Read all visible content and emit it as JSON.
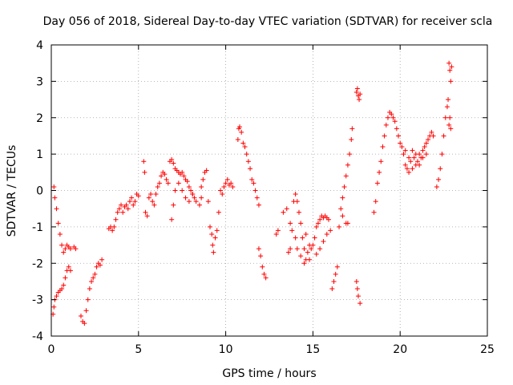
{
  "chart_data": {
    "type": "scatter",
    "title": "Day 056 of 2018, Sidereal Day-to-day VTEC variation (SDTVAR) for receiver scla",
    "xlabel": "GPS time / hours",
    "ylabel": "SDTVAR / TECUs",
    "xlim": [
      0,
      25
    ],
    "ylim": [
      -4,
      4
    ],
    "xticks": [
      0,
      5,
      10,
      15,
      20,
      25
    ],
    "xtick_labels": [
      "0",
      "5",
      "10",
      "15",
      "20",
      "25"
    ],
    "yticks": [
      -4,
      -3,
      -2,
      -1,
      0,
      1,
      2,
      3,
      4
    ],
    "ytick_labels": [
      "-4",
      "-3",
      "-2",
      "-1",
      "0",
      "1",
      "2",
      "3",
      "4"
    ],
    "grid": true,
    "marker": "+",
    "color": "#ff0000",
    "series": [
      {
        "name": "SDTVAR",
        "points": [
          [
            0.15,
            0.1
          ],
          [
            0.2,
            -0.2
          ],
          [
            0.3,
            -0.5
          ],
          [
            0.4,
            -0.9
          ],
          [
            0.5,
            -1.2
          ],
          [
            0.6,
            -1.5
          ],
          [
            0.7,
            -1.7
          ],
          [
            0.8,
            -1.6
          ],
          [
            0.9,
            -1.5
          ],
          [
            1.0,
            -1.55
          ],
          [
            1.1,
            -1.6
          ],
          [
            1.3,
            -1.55
          ],
          [
            1.4,
            -1.6
          ],
          [
            0.1,
            -3.4
          ],
          [
            0.15,
            -3.2
          ],
          [
            0.2,
            -3.0
          ],
          [
            0.3,
            -2.9
          ],
          [
            0.4,
            -2.8
          ],
          [
            0.5,
            -2.75
          ],
          [
            0.6,
            -2.7
          ],
          [
            0.7,
            -2.6
          ],
          [
            0.8,
            -2.4
          ],
          [
            0.9,
            -2.2
          ],
          [
            1.0,
            -2.1
          ],
          [
            1.1,
            -2.2
          ],
          [
            1.7,
            -3.45
          ],
          [
            1.8,
            -3.6
          ],
          [
            1.9,
            -3.65
          ],
          [
            2.0,
            -3.3
          ],
          [
            2.1,
            -3.0
          ],
          [
            2.2,
            -2.7
          ],
          [
            2.3,
            -2.5
          ],
          [
            2.4,
            -2.4
          ],
          [
            2.5,
            -2.3
          ],
          [
            2.6,
            -2.1
          ],
          [
            2.7,
            -2.0
          ],
          [
            2.8,
            -2.05
          ],
          [
            2.9,
            -1.9
          ],
          [
            3.3,
            -1.05
          ],
          [
            3.4,
            -1.0
          ],
          [
            3.5,
            -1.1
          ],
          [
            3.6,
            -1.0
          ],
          [
            3.7,
            -0.8
          ],
          [
            3.8,
            -0.6
          ],
          [
            3.9,
            -0.5
          ],
          [
            4.0,
            -0.4
          ],
          [
            4.1,
            -0.6
          ],
          [
            4.2,
            -0.45
          ],
          [
            4.3,
            -0.4
          ],
          [
            4.4,
            -0.5
          ],
          [
            4.5,
            -0.3
          ],
          [
            4.6,
            -0.2
          ],
          [
            4.7,
            -0.4
          ],
          [
            4.8,
            -0.3
          ],
          [
            4.9,
            -0.1
          ],
          [
            5.0,
            -0.15
          ],
          [
            5.3,
            0.8
          ],
          [
            5.35,
            0.5
          ],
          [
            5.4,
            -0.6
          ],
          [
            5.5,
            -0.7
          ],
          [
            5.6,
            -0.2
          ],
          [
            5.7,
            -0.1
          ],
          [
            5.8,
            -0.3
          ],
          [
            5.9,
            -0.4
          ],
          [
            6.0,
            -0.1
          ],
          [
            6.1,
            0.1
          ],
          [
            6.2,
            0.2
          ],
          [
            6.3,
            0.4
          ],
          [
            6.4,
            0.5
          ],
          [
            6.5,
            0.45
          ],
          [
            6.6,
            0.3
          ],
          [
            6.7,
            0.2
          ],
          [
            6.8,
            0.8
          ],
          [
            6.9,
            0.85
          ],
          [
            7.0,
            0.75
          ],
          [
            7.1,
            0.6
          ],
          [
            7.2,
            0.55
          ],
          [
            7.3,
            0.5
          ],
          [
            7.4,
            0.45
          ],
          [
            7.5,
            0.5
          ],
          [
            7.6,
            0.4
          ],
          [
            7.7,
            0.3
          ],
          [
            7.8,
            0.25
          ],
          [
            7.9,
            0.1
          ],
          [
            8.0,
            0.0
          ],
          [
            8.1,
            -0.1
          ],
          [
            8.2,
            -0.2
          ],
          [
            6.9,
            -0.8
          ],
          [
            7.0,
            -0.4
          ],
          [
            7.1,
            0.0
          ],
          [
            7.3,
            0.2
          ],
          [
            7.5,
            0.0
          ],
          [
            7.7,
            -0.2
          ],
          [
            7.9,
            -0.3
          ],
          [
            8.1,
            -0.1
          ],
          [
            8.3,
            -0.3
          ],
          [
            8.5,
            -0.4
          ],
          [
            8.6,
            0.1
          ],
          [
            8.7,
            0.3
          ],
          [
            8.8,
            0.5
          ],
          [
            8.9,
            0.55
          ],
          [
            8.6,
            -0.2
          ],
          [
            9.0,
            -0.3
          ],
          [
            9.1,
            -1.0
          ],
          [
            9.2,
            -1.2
          ],
          [
            9.25,
            -1.5
          ],
          [
            9.3,
            -1.7
          ],
          [
            9.4,
            -1.3
          ],
          [
            9.5,
            -1.1
          ],
          [
            9.6,
            -0.6
          ],
          [
            9.7,
            0.0
          ],
          [
            9.8,
            -0.1
          ],
          [
            9.9,
            0.1
          ],
          [
            10.0,
            0.2
          ],
          [
            10.1,
            0.3
          ],
          [
            10.2,
            0.15
          ],
          [
            10.3,
            0.2
          ],
          [
            10.4,
            0.1
          ],
          [
            10.7,
            1.4
          ],
          [
            10.75,
            1.7
          ],
          [
            10.8,
            1.75
          ],
          [
            10.9,
            1.6
          ],
          [
            11.0,
            1.3
          ],
          [
            11.1,
            1.2
          ],
          [
            11.2,
            1.0
          ],
          [
            11.3,
            0.8
          ],
          [
            11.4,
            0.6
          ],
          [
            11.5,
            0.3
          ],
          [
            11.6,
            0.2
          ],
          [
            11.7,
            0.0
          ],
          [
            11.8,
            -0.2
          ],
          [
            11.9,
            -0.4
          ],
          [
            11.9,
            -1.6
          ],
          [
            12.0,
            -1.8
          ],
          [
            12.1,
            -2.1
          ],
          [
            12.2,
            -2.3
          ],
          [
            12.3,
            -2.4
          ],
          [
            12.9,
            -1.2
          ],
          [
            13.0,
            -1.1
          ],
          [
            13.3,
            -0.6
          ],
          [
            13.5,
            -0.5
          ],
          [
            13.7,
            -0.9
          ],
          [
            13.8,
            -1.1
          ],
          [
            13.6,
            -1.7
          ],
          [
            13.7,
            -1.6
          ],
          [
            13.9,
            -0.3
          ],
          [
            14.0,
            -0.1
          ],
          [
            14.1,
            -0.3
          ],
          [
            14.2,
            -0.6
          ],
          [
            14.3,
            -0.9
          ],
          [
            14.4,
            -1.3
          ],
          [
            14.5,
            -1.6
          ],
          [
            14.6,
            -1.9
          ],
          [
            14.7,
            -1.7
          ],
          [
            14.8,
            -1.5
          ],
          [
            14.9,
            -1.6
          ],
          [
            14.0,
            -1.3
          ],
          [
            14.1,
            -1.6
          ],
          [
            14.3,
            -1.8
          ],
          [
            14.5,
            -2.0
          ],
          [
            14.6,
            -1.2
          ],
          [
            14.8,
            -1.9
          ],
          [
            15.0,
            -1.5
          ],
          [
            15.1,
            -1.3
          ],
          [
            15.2,
            -1.0
          ],
          [
            15.3,
            -0.9
          ],
          [
            15.4,
            -0.8
          ],
          [
            15.5,
            -0.7
          ],
          [
            15.6,
            -0.75
          ],
          [
            15.7,
            -0.7
          ],
          [
            15.8,
            -0.75
          ],
          [
            15.9,
            -0.8
          ],
          [
            15.2,
            -1.75
          ],
          [
            15.4,
            -1.6
          ],
          [
            15.6,
            -1.4
          ],
          [
            15.8,
            -1.2
          ],
          [
            16.0,
            -1.1
          ],
          [
            16.1,
            -2.7
          ],
          [
            16.2,
            -2.5
          ],
          [
            16.3,
            -2.3
          ],
          [
            16.4,
            -2.1
          ],
          [
            16.5,
            -1.0
          ],
          [
            16.6,
            -0.5
          ],
          [
            16.7,
            -0.2
          ],
          [
            16.8,
            0.1
          ],
          [
            16.9,
            0.4
          ],
          [
            17.0,
            0.7
          ],
          [
            17.1,
            1.0
          ],
          [
            17.2,
            1.4
          ],
          [
            17.25,
            1.7
          ],
          [
            16.7,
            -0.7
          ],
          [
            16.9,
            -0.9
          ],
          [
            17.0,
            -0.9
          ],
          [
            17.5,
            2.7
          ],
          [
            17.55,
            2.8
          ],
          [
            17.6,
            2.6
          ],
          [
            17.65,
            2.5
          ],
          [
            17.7,
            2.65
          ],
          [
            17.5,
            -2.5
          ],
          [
            17.55,
            -2.7
          ],
          [
            17.6,
            -2.9
          ],
          [
            17.7,
            -3.1
          ],
          [
            18.5,
            -0.6
          ],
          [
            18.6,
            -0.3
          ],
          [
            18.7,
            0.2
          ],
          [
            18.8,
            0.5
          ],
          [
            18.9,
            0.8
          ],
          [
            19.0,
            1.2
          ],
          [
            19.1,
            1.5
          ],
          [
            19.2,
            1.8
          ],
          [
            19.3,
            2.0
          ],
          [
            19.4,
            2.15
          ],
          [
            19.5,
            2.1
          ],
          [
            19.6,
            2.0
          ],
          [
            19.7,
            1.9
          ],
          [
            19.8,
            1.7
          ],
          [
            19.9,
            1.5
          ],
          [
            20.0,
            1.3
          ],
          [
            20.1,
            1.2
          ],
          [
            20.2,
            1.0
          ],
          [
            20.3,
            0.7
          ],
          [
            20.4,
            0.6
          ],
          [
            20.5,
            0.5
          ],
          [
            20.6,
            0.8
          ],
          [
            20.7,
            0.6
          ],
          [
            20.8,
            0.9
          ],
          [
            20.9,
            0.7
          ],
          [
            21.0,
            0.8
          ],
          [
            21.1,
            1.0
          ],
          [
            21.2,
            0.9
          ],
          [
            21.3,
            1.1
          ],
          [
            21.4,
            1.2
          ],
          [
            21.5,
            1.3
          ],
          [
            21.6,
            1.4
          ],
          [
            21.7,
            1.5
          ],
          [
            21.8,
            1.6
          ],
          [
            21.9,
            1.5
          ],
          [
            20.3,
            1.1
          ],
          [
            20.5,
            0.9
          ],
          [
            20.7,
            1.1
          ],
          [
            20.9,
            1.0
          ],
          [
            21.1,
            0.7
          ],
          [
            21.3,
            0.9
          ],
          [
            21.5,
            1.0
          ],
          [
            22.1,
            0.1
          ],
          [
            22.2,
            0.3
          ],
          [
            22.3,
            0.6
          ],
          [
            22.4,
            1.0
          ],
          [
            22.5,
            1.5
          ],
          [
            22.6,
            2.0
          ],
          [
            22.7,
            2.3
          ],
          [
            22.75,
            2.5
          ],
          [
            22.8,
            1.8
          ],
          [
            22.85,
            2.0
          ],
          [
            22.9,
            1.7
          ],
          [
            22.8,
            3.5
          ],
          [
            22.85,
            3.3
          ],
          [
            22.9,
            3.0
          ],
          [
            22.95,
            3.4
          ]
        ]
      }
    ]
  }
}
